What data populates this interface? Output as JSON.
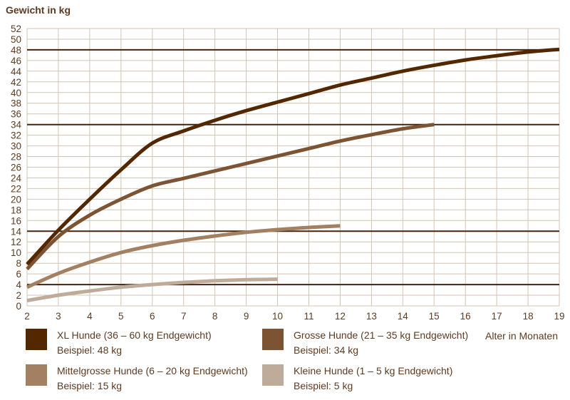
{
  "title": "Gewicht in kg",
  "x_axis_title": "Alter in Monaten",
  "colors": {
    "background": "#ffffff",
    "text": "#5d3b22",
    "grid": "#d2c4b4",
    "reference_line": "#47230a"
  },
  "chart_data": {
    "type": "line",
    "title": "Gewicht in kg",
    "xlabel": "Alter in Monaten",
    "ylabel": "Gewicht in kg",
    "xlim": [
      2,
      19
    ],
    "ylim": [
      0,
      52
    ],
    "x_ticks": [
      2,
      3,
      4,
      5,
      6,
      7,
      8,
      9,
      10,
      11,
      12,
      13,
      14,
      15,
      16,
      17,
      18,
      19
    ],
    "y_tick_step": 2,
    "grid": true,
    "legend_position": "bottom",
    "reference_lines": [
      {
        "y": 48
      },
      {
        "y": 34
      },
      {
        "y": 14
      },
      {
        "y": 4
      }
    ],
    "series": [
      {
        "id": "xl",
        "name": "XL Hunde (36 – 60 kg Endgewicht)",
        "example": "Beispiel: 48 kg",
        "color": "#532700",
        "points": [
          [
            2,
            7.8
          ],
          [
            3,
            14.2
          ],
          [
            4,
            20
          ],
          [
            5,
            25.5
          ],
          [
            6,
            30.5
          ],
          [
            7,
            32.8
          ],
          [
            8,
            34.8
          ],
          [
            9,
            36.6
          ],
          [
            10,
            38.2
          ],
          [
            11,
            39.8
          ],
          [
            12,
            41.4
          ],
          [
            13,
            42.7
          ],
          [
            14,
            44
          ],
          [
            15,
            45.1
          ],
          [
            16,
            46.1
          ],
          [
            17,
            46.9
          ],
          [
            18,
            47.6
          ],
          [
            19,
            48.1
          ]
        ]
      },
      {
        "id": "grosse",
        "name": "Grosse Hunde (21 – 35 kg Endgewicht)",
        "example": "Beispiel: 34 kg",
        "color": "#7d5433",
        "points": [
          [
            2,
            6.9
          ],
          [
            3,
            13
          ],
          [
            4,
            17
          ],
          [
            5,
            20
          ],
          [
            6,
            22.5
          ],
          [
            7,
            23.9
          ],
          [
            8,
            25.3
          ],
          [
            9,
            26.7
          ],
          [
            10,
            28.1
          ],
          [
            11,
            29.5
          ],
          [
            12,
            30.9
          ],
          [
            13,
            32.1
          ],
          [
            14,
            33.2
          ],
          [
            15,
            34
          ]
        ]
      },
      {
        "id": "mittelgrosse",
        "name": "Mittelgrosse Hunde (6 – 20 kg Endgewicht)",
        "example": "Beispiel: 15 kg",
        "color": "#a28061",
        "points": [
          [
            2,
            3.5
          ],
          [
            3,
            6.1
          ],
          [
            4,
            8.2
          ],
          [
            5,
            10
          ],
          [
            6,
            11.3
          ],
          [
            7,
            12.3
          ],
          [
            8,
            13.1
          ],
          [
            9,
            13.8
          ],
          [
            10,
            14.3
          ],
          [
            11,
            14.7
          ],
          [
            12,
            15
          ]
        ]
      },
      {
        "id": "kleine",
        "name": "Kleine Hunde (1 – 5 kg Endgewicht)",
        "example": "Beispiel: 5 kg",
        "color": "#bfab99",
        "points": [
          [
            2,
            1
          ],
          [
            3,
            2
          ],
          [
            4,
            2.8
          ],
          [
            5,
            3.5
          ],
          [
            6,
            4
          ],
          [
            7,
            4.4
          ],
          [
            8,
            4.7
          ],
          [
            9,
            4.9
          ],
          [
            10,
            5
          ]
        ]
      }
    ]
  }
}
